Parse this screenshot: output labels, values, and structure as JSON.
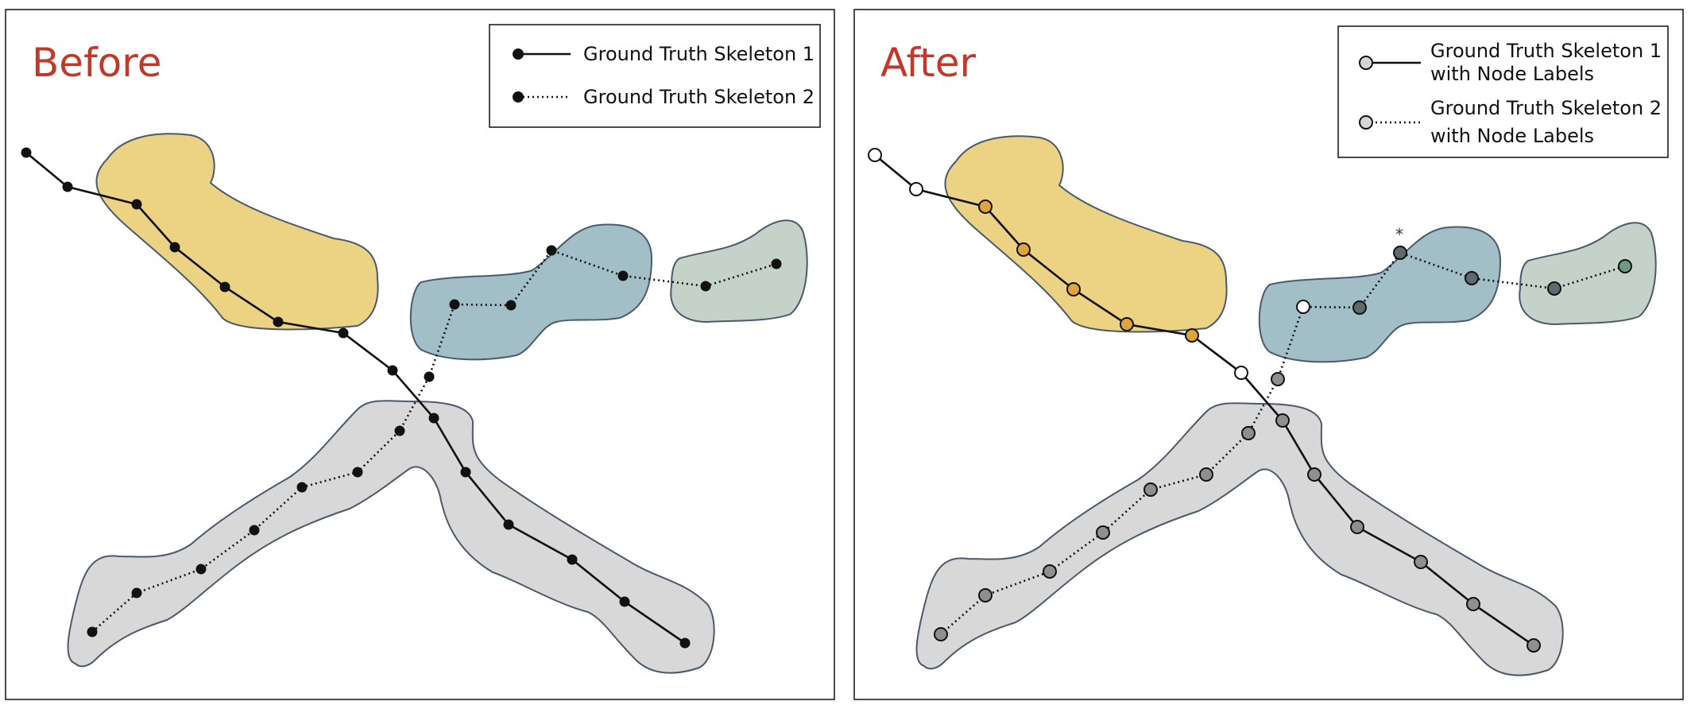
{
  "colors": {
    "title": "#c0392b",
    "yellow_region": "#ecd283",
    "teal_region": "#a2bfc8",
    "sage_region": "#c4d2ca",
    "gray_region": "#d8d8d8",
    "region_stroke": "#4a5a6a",
    "node_black": "#111111",
    "node_white": "#ffffff",
    "node_orange": "#e0a53a",
    "node_gray": "#8f8f8f",
    "node_dark_teal": "#5d6b6e",
    "node_green": "#6f9a82",
    "legend_node": "#d6d6d6"
  },
  "panels": [
    {
      "id": "before",
      "title": "Before",
      "legend": [
        {
          "label_lines": [
            "Ground Truth Skeleton 1"
          ],
          "line_style": "solid"
        },
        {
          "label_lines": [
            "Ground Truth Skeleton 2"
          ],
          "line_style": "dotted"
        }
      ]
    },
    {
      "id": "after",
      "title": "After",
      "legend": [
        {
          "label_lines": [
            "Ground Truth Skeleton 1",
            "with Node Labels"
          ],
          "line_style": "solid"
        },
        {
          "label_lines": [
            "Ground Truth Skeleton 2",
            "with Node Labels"
          ],
          "line_style": "dotted"
        }
      ],
      "annotation": "*"
    }
  ],
  "skeleton_1_node_labels": [
    "white",
    "white",
    "orange",
    "orange",
    "orange",
    "orange",
    "orange",
    "white",
    "gray",
    "gray",
    "gray",
    "gray",
    "gray",
    "gray"
  ],
  "skeleton_2_node_labels": [
    "gray",
    "gray",
    "gray",
    "gray",
    "gray",
    "gray",
    "gray",
    "gray",
    "white",
    "dark_teal",
    "dark_teal",
    "dark_teal",
    "dark_teal",
    "green",
    "green"
  ]
}
